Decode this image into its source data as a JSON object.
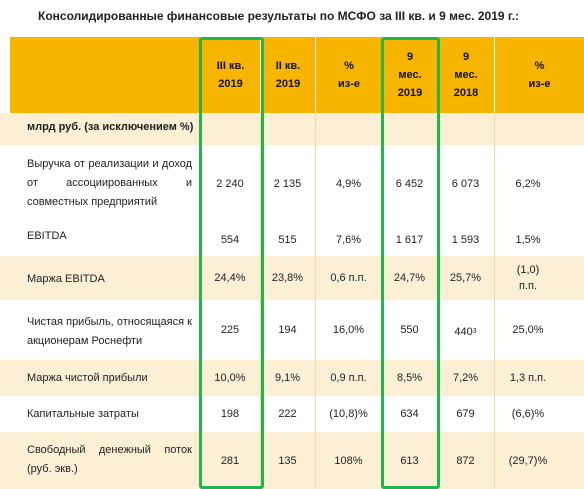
{
  "title": "Консолидированные финансовые результаты по МСФО за III кв. и 9 мес. 2019 г.:",
  "columns": [
    {
      "lines": [
        "III кв.",
        "2019"
      ]
    },
    {
      "lines": [
        "II кв.",
        "2019"
      ]
    },
    {
      "lines": [
        "%",
        "из-е"
      ]
    },
    {
      "lines": [
        "9",
        "мес.",
        "2019"
      ]
    },
    {
      "lines": [
        "9",
        "мес.",
        "2018"
      ]
    },
    {
      "lines": [
        "%",
        "из-е"
      ]
    }
  ],
  "unit_row": "млрд руб. (за исключением %)",
  "rows": [
    {
      "label": "Выручка от реализации и доход от ассоциированных и совместных предприятий",
      "values": [
        "2 240",
        "2 135",
        "4,9%",
        "6 452",
        "6 073",
        "6,2%"
      ]
    },
    {
      "label": "EBITDA",
      "values": [
        "554",
        "515",
        "7,6%",
        "1 617",
        "1 593",
        "1,5%"
      ]
    },
    {
      "label": "Маржа EBITDA",
      "values": [
        "24,4%",
        "23,8%",
        "0,6 п.п.",
        "24,7%",
        "25,7%",
        "(1,0) п.п."
      ]
    },
    {
      "label": "Чистая прибыль, относящаяся к акционерам Роснефти",
      "values": [
        "225",
        "194",
        "16,0%",
        "550",
        "440",
        "25,0%"
      ],
      "footnote": "3"
    },
    {
      "label": "Маржа чистой прибыли",
      "values": [
        "10,0%",
        "9,1%",
        "0,9 п.п.",
        "8,5%",
        "7,2%",
        "1,3 п.п."
      ]
    },
    {
      "label": "Капитальные затраты",
      "values": [
        "198",
        "222",
        "(10,8)%",
        "634",
        "679",
        "(6,6)%"
      ]
    },
    {
      "label": "Свободный денежный поток (руб. экв.)",
      "values": [
        "281",
        "135",
        "108%",
        "613",
        "872",
        "(29,7)%"
      ]
    }
  ],
  "colors": {
    "header": "#f7b500",
    "stripe": "#fbf0d6",
    "highlight": "#20b74a"
  }
}
